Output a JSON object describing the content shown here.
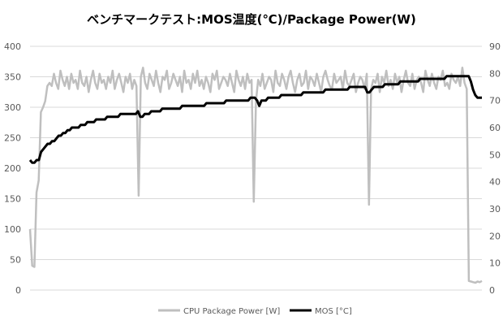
{
  "chart_data": {
    "type": "line",
    "title": "ベンチマークテスト:MOS温度(℃)/Package Power(W)",
    "grid": true,
    "legend_position": "bottom",
    "left_axis": {
      "min": 0,
      "max": 400,
      "ticks": [
        "0",
        "50",
        "100",
        "150",
        "200",
        "250",
        "300",
        "350",
        "400"
      ]
    },
    "right_axis": {
      "min": 0,
      "max": 90,
      "ticks": [
        "0",
        "10",
        "20",
        "30",
        "40",
        "50",
        "60",
        "70",
        "80",
        "90"
      ]
    },
    "series": [
      {
        "name": "CPU Package Power [W]",
        "axis": "left",
        "color": "#bfbfbf",
        "values": [
          100,
          40,
          38,
          160,
          180,
          292,
          300,
          310,
          335,
          340,
          335,
          355,
          340,
          330,
          360,
          345,
          335,
          350,
          330,
          355,
          340,
          345,
          330,
          360,
          340,
          335,
          350,
          325,
          345,
          360,
          340,
          330,
          355,
          340,
          345,
          330,
          350,
          340,
          360,
          330,
          345,
          355,
          340,
          325,
          350,
          340,
          355,
          330,
          345,
          335,
          155,
          350,
          365,
          340,
          330,
          355,
          345,
          335,
          360,
          340,
          325,
          350,
          345,
          360,
          330,
          340,
          355,
          345,
          335,
          350,
          325,
          360,
          340,
          345,
          330,
          355,
          340,
          360,
          335,
          345,
          330,
          350,
          340,
          325,
          355,
          345,
          360,
          330,
          340,
          350,
          345,
          335,
          355,
          340,
          325,
          360,
          345,
          335,
          350,
          330,
          355,
          340,
          345,
          145,
          310,
          345,
          335,
          355,
          330,
          340,
          350,
          345,
          325,
          360,
          340,
          335,
          355,
          345,
          330,
          350,
          360,
          340,
          325,
          345,
          355,
          335,
          340,
          360,
          330,
          350,
          345,
          335,
          355,
          340,
          325,
          350,
          360,
          345,
          335,
          330,
          355,
          340,
          345,
          350,
          330,
          360,
          340,
          335,
          345,
          355,
          325,
          340,
          350,
          345,
          330,
          355,
          140,
          330,
          345,
          340,
          355,
          325,
          350,
          340,
          360,
          335,
          345,
          330,
          355,
          340,
          350,
          325,
          345,
          360,
          340,
          335,
          355,
          330,
          345,
          350,
          340,
          325,
          360,
          345,
          335,
          355,
          340,
          330,
          350,
          345,
          360,
          335,
          340,
          330,
          355,
          345,
          340,
          350,
          335,
          365,
          340,
          330,
          15,
          14,
          13,
          12,
          14,
          13,
          15
        ]
      },
      {
        "name": "MOS [°C]",
        "axis": "right",
        "color": "#000000",
        "values": [
          48,
          47,
          47,
          48,
          48,
          51,
          52,
          53,
          54,
          54,
          55,
          55,
          56,
          57,
          57,
          58,
          58,
          59,
          59,
          60,
          60,
          60,
          60,
          61,
          61,
          61,
          62,
          62,
          62,
          62,
          63,
          63,
          63,
          63,
          63,
          64,
          64,
          64,
          64,
          64,
          64,
          65,
          65,
          65,
          65,
          65,
          65,
          65,
          65,
          66,
          64,
          64,
          65,
          65,
          65,
          66,
          66,
          66,
          66,
          66,
          67,
          67,
          67,
          67,
          67,
          67,
          67,
          67,
          67,
          68,
          68,
          68,
          68,
          68,
          68,
          68,
          68,
          68,
          68,
          68,
          69,
          69,
          69,
          69,
          69,
          69,
          69,
          69,
          69,
          70,
          70,
          70,
          70,
          70,
          70,
          70,
          70,
          70,
          70,
          70,
          71,
          71,
          71,
          70,
          68,
          70,
          70,
          70,
          71,
          71,
          71,
          71,
          71,
          71,
          72,
          72,
          72,
          72,
          72,
          72,
          72,
          72,
          72,
          72,
          73,
          73,
          73,
          73,
          73,
          73,
          73,
          73,
          73,
          73,
          74,
          74,
          74,
          74,
          74,
          74,
          74,
          74,
          74,
          74,
          74,
          75,
          75,
          75,
          75,
          75,
          75,
          75,
          75,
          73,
          73,
          74,
          75,
          75,
          75,
          75,
          75,
          76,
          76,
          76,
          76,
          76,
          76,
          76,
          77,
          77,
          77,
          77,
          77,
          77,
          77,
          77,
          77,
          78,
          78,
          78,
          78,
          78,
          78,
          78,
          78,
          78,
          78,
          78,
          78,
          79,
          79,
          79,
          79,
          79,
          79,
          79,
          79,
          79,
          79,
          79,
          77,
          74,
          72,
          71,
          71,
          71
        ]
      }
    ]
  }
}
